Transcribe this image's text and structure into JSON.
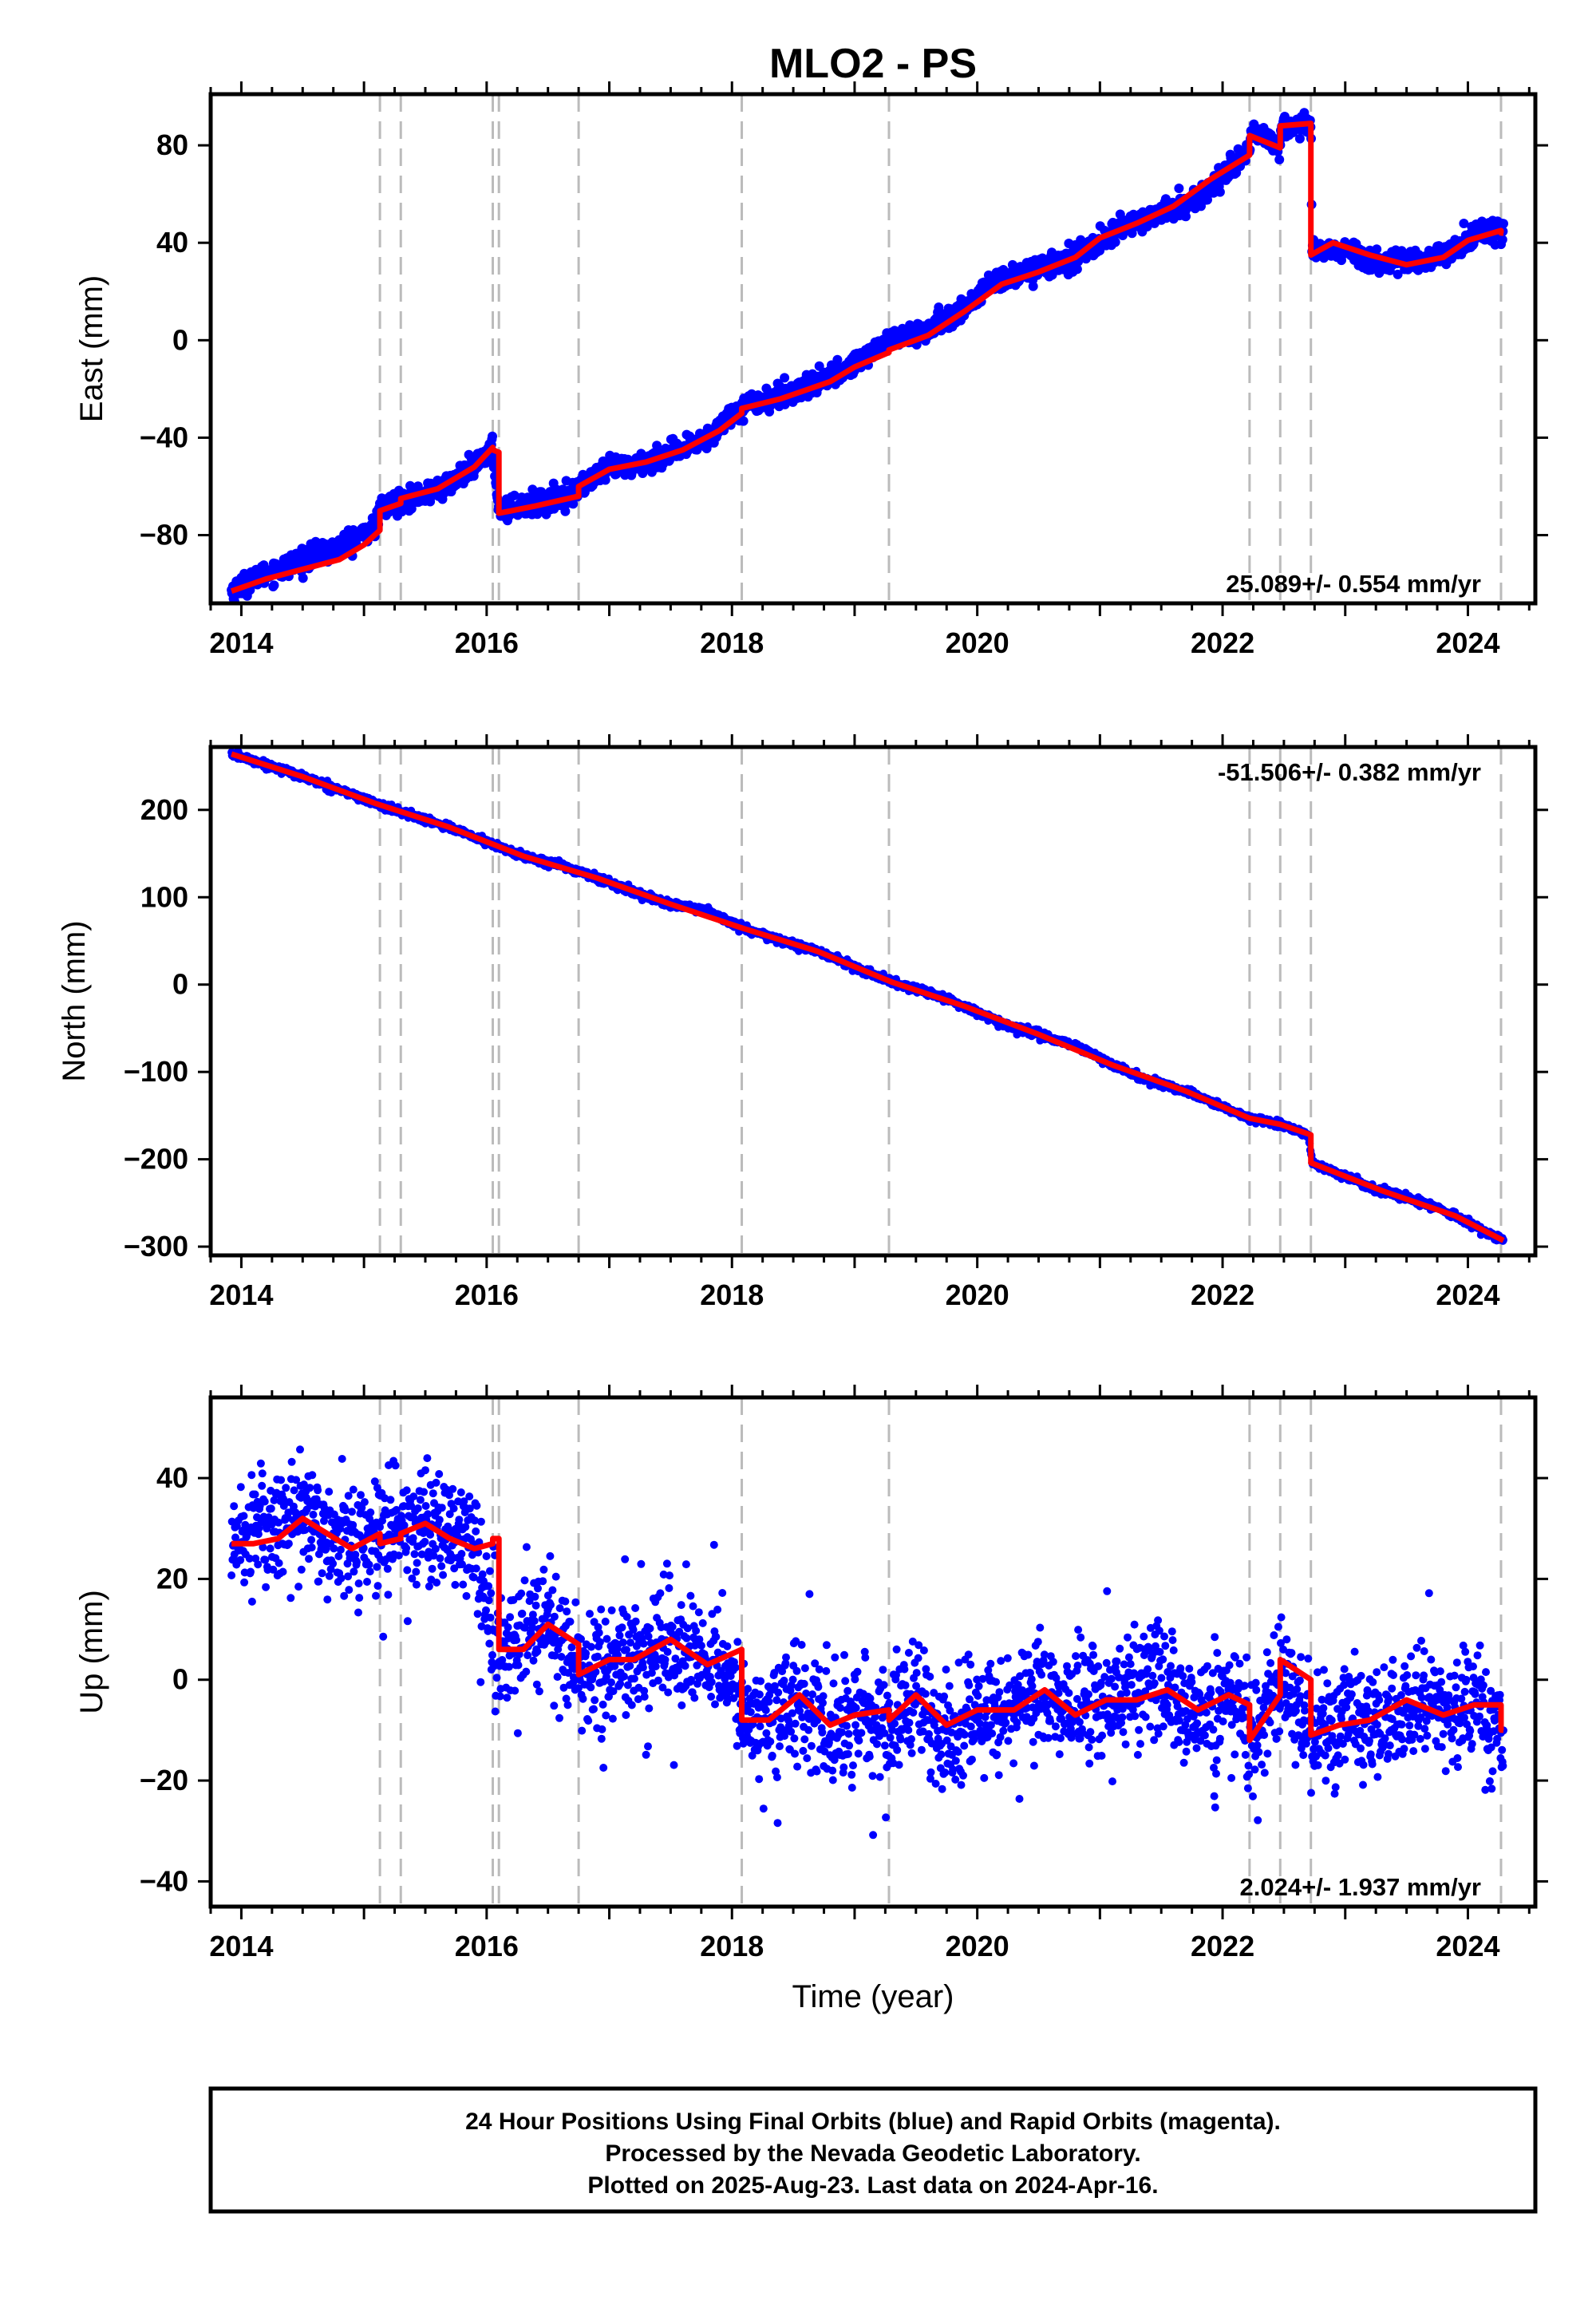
{
  "title": "MLO2 - PS",
  "xlabel": "Time (year)",
  "footer": {
    "line1": "24 Hour Positions Using Final Orbits (blue) and Rapid Orbits (magenta).",
    "line2": "Processed by the Nevada Geodetic Laboratory.",
    "line3": "Plotted on 2025-Aug-23. Last data on 2024-Apr-16."
  },
  "colors": {
    "final_orbits": "#0000ff",
    "model": "#ff0000",
    "event_lines": "#bbbbbb",
    "frame": "#000000"
  },
  "chart_data": [
    {
      "type": "scatter",
      "panel": "east",
      "ylabel": "East (mm)",
      "rate": "25.089+/- 0.554 mm/yr",
      "rate_position": "bottom-right",
      "xlim": [
        2013.75,
        2024.55
      ],
      "ylim": [
        -108,
        101
      ],
      "x_ticks": [
        2014,
        2016,
        2018,
        2020,
        2022,
        2024
      ],
      "y_ticks": [
        -80,
        -40,
        0,
        40,
        80
      ],
      "event_lines": [
        2015.13,
        2015.3,
        2016.05,
        2016.1,
        2016.75,
        2018.08,
        2019.28,
        2022.22,
        2022.47,
        2022.72,
        2024.27
      ],
      "series": [
        {
          "role": "daily positions (blue)",
          "x": [
            2013.92,
            2014.1,
            2014.3,
            2014.5,
            2014.7,
            2014.9,
            2015.1,
            2015.14,
            2015.3,
            2015.5,
            2015.7,
            2015.9,
            2016.05,
            2016.1,
            2016.3,
            2016.5,
            2016.7,
            2016.76,
            2017.0,
            2017.3,
            2017.6,
            2017.8,
            2018.08,
            2018.3,
            2018.6,
            2018.9,
            2019.1,
            2019.28,
            2019.6,
            2019.9,
            2020.1,
            2020.3,
            2020.6,
            2020.9,
            2021.2,
            2021.5,
            2021.8,
            2022.0,
            2022.22,
            2022.23,
            2022.47,
            2022.48,
            2022.72,
            2022.73,
            2023.0,
            2023.3,
            2023.6,
            2023.9,
            2024.1,
            2024.29
          ],
          "y": [
            -103,
            -98,
            -94,
            -90,
            -87,
            -82,
            -76,
            -69,
            -66,
            -63,
            -59,
            -52,
            -44,
            -70,
            -68,
            -66,
            -63,
            -60,
            -53,
            -50,
            -45,
            -40,
            -27,
            -24,
            -19,
            -13,
            -6,
            0,
            4,
            13,
            23,
            27,
            31,
            37,
            47,
            52,
            58,
            67,
            79,
            86,
            80,
            88,
            88,
            37,
            37,
            32,
            32,
            38,
            44,
            45
          ]
        },
        {
          "role": "model fit (red)",
          "x": [
            2013.92,
            2014.2,
            2014.5,
            2014.8,
            2015.0,
            2015.13,
            2015.13,
            2015.3,
            2015.3,
            2015.6,
            2015.9,
            2016.05,
            2016.05,
            2016.1,
            2016.1,
            2016.4,
            2016.75,
            2016.75,
            2017.0,
            2017.3,
            2017.6,
            2017.9,
            2018.08,
            2018.08,
            2018.4,
            2018.8,
            2019.0,
            2019.28,
            2019.28,
            2019.6,
            2019.9,
            2020.2,
            2020.5,
            2020.8,
            2021.0,
            2021.3,
            2021.6,
            2021.9,
            2022.22,
            2022.22,
            2022.47,
            2022.47,
            2022.72,
            2022.72,
            2022.9,
            2023.2,
            2023.5,
            2023.8,
            2024.0,
            2024.27,
            2024.27,
            2024.29
          ],
          "y": [
            -103,
            -98,
            -94,
            -90,
            -84,
            -78,
            -70,
            -67,
            -65,
            -61,
            -52,
            -44,
            -45,
            -46,
            -71,
            -68,
            -64,
            -60,
            -53,
            -50,
            -45,
            -37,
            -30,
            -28,
            -24,
            -17,
            -11,
            -5,
            -4,
            2,
            12,
            23,
            28,
            34,
            42,
            48,
            55,
            66,
            76,
            84,
            79,
            88,
            89,
            35,
            40,
            35,
            31,
            34,
            41,
            45,
            44,
            44
          ]
        }
      ]
    },
    {
      "type": "scatter",
      "panel": "north",
      "ylabel": "North (mm)",
      "rate": "-51.506+/- 0.382 mm/yr",
      "rate_position": "top-right",
      "xlim": [
        2013.75,
        2024.55
      ],
      "ylim": [
        -310,
        272
      ],
      "x_ticks": [
        2014,
        2016,
        2018,
        2020,
        2022,
        2024
      ],
      "y_ticks": [
        -300,
        -200,
        -100,
        0,
        100,
        200
      ],
      "event_lines": [
        2015.13,
        2015.3,
        2016.05,
        2016.1,
        2016.75,
        2018.08,
        2019.28,
        2022.22,
        2022.47,
        2022.72,
        2024.27
      ],
      "series": [
        {
          "role": "daily positions (blue)",
          "x": [
            2013.92,
            2014.2,
            2014.5,
            2014.8,
            2015.1,
            2015.4,
            2015.7,
            2016.0,
            2016.3,
            2016.6,
            2016.9,
            2017.2,
            2017.5,
            2017.8,
            2018.1,
            2018.4,
            2018.7,
            2019.0,
            2019.3,
            2019.6,
            2019.9,
            2020.2,
            2020.5,
            2020.8,
            2021.1,
            2021.4,
            2021.7,
            2022.0,
            2022.22,
            2022.47,
            2022.7,
            2022.73,
            2023.0,
            2023.3,
            2023.6,
            2023.9,
            2024.1,
            2024.29
          ],
          "y": [
            264,
            252,
            238,
            223,
            207,
            193,
            180,
            163,
            147,
            137,
            122,
            106,
            92,
            84,
            64,
            50,
            38,
            20,
            3,
            -9,
            -25,
            -45,
            -57,
            -70,
            -92,
            -110,
            -122,
            -140,
            -153,
            -160,
            -172,
            -204,
            -220,
            -236,
            -248,
            -265,
            -280,
            -293
          ]
        },
        {
          "role": "model fit (red)",
          "x": [
            2013.92,
            2014.5,
            2015.1,
            2015.7,
            2016.3,
            2016.9,
            2017.5,
            2018.1,
            2018.7,
            2019.3,
            2019.9,
            2020.5,
            2021.1,
            2021.7,
            2022.22,
            2022.47,
            2022.72,
            2022.72,
            2023.3,
            2023.9,
            2024.29
          ],
          "y": [
            264,
            238,
            207,
            180,
            147,
            122,
            92,
            64,
            38,
            3,
            -25,
            -57,
            -92,
            -122,
            -153,
            -160,
            -172,
            -204,
            -236,
            -265,
            -293
          ]
        }
      ]
    },
    {
      "type": "scatter",
      "panel": "up",
      "ylabel": "Up (mm)",
      "rate": "2.024+/- 1.937 mm/yr",
      "rate_position": "bottom-right",
      "xlim": [
        2013.75,
        2024.55
      ],
      "ylim": [
        -45,
        56
      ],
      "x_ticks": [
        2014,
        2016,
        2018,
        2020,
        2022,
        2024
      ],
      "y_ticks": [
        -40,
        -20,
        0,
        20,
        40
      ],
      "event_lines": [
        2015.13,
        2015.3,
        2016.05,
        2016.1,
        2016.75,
        2018.08,
        2019.28,
        2022.22,
        2022.47,
        2022.72,
        2024.27
      ],
      "series": [
        {
          "role": "daily positions (blue)",
          "x": [
            2013.92,
            2014.1,
            2014.3,
            2014.5,
            2014.7,
            2014.9,
            2015.1,
            2015.3,
            2015.5,
            2015.7,
            2015.9,
            2016.1,
            2016.3,
            2016.5,
            2016.7,
            2016.9,
            2017.1,
            2017.3,
            2017.5,
            2017.7,
            2017.9,
            2018.1,
            2018.3,
            2018.5,
            2018.7,
            2018.9,
            2019.1,
            2019.3,
            2019.5,
            2019.7,
            2019.9,
            2020.1,
            2020.3,
            2020.5,
            2020.7,
            2020.9,
            2021.1,
            2021.3,
            2021.5,
            2021.7,
            2021.9,
            2022.1,
            2022.3,
            2022.5,
            2022.7,
            2022.9,
            2023.1,
            2023.3,
            2023.5,
            2023.7,
            2023.9,
            2024.1,
            2024.29
          ],
          "y": [
            27,
            31,
            30,
            34,
            28,
            26,
            30,
            29,
            32,
            28,
            27,
            6,
            8,
            11,
            3,
            1,
            3,
            5,
            8,
            5,
            4,
            -8,
            -8,
            -3,
            -8,
            -9,
            -6,
            -8,
            -4,
            -10,
            -9,
            -6,
            -6,
            -2,
            -6,
            -4,
            -5,
            -2,
            -1,
            -7,
            -5,
            -3,
            -11,
            2,
            -11,
            -9,
            -8,
            -10,
            -4,
            -6,
            -7,
            -6,
            -10
          ]
        },
        {
          "role": "model fit (red)",
          "x": [
            2013.92,
            2014.1,
            2014.3,
            2014.5,
            2014.7,
            2014.9,
            2015.13,
            2015.13,
            2015.3,
            2015.3,
            2015.5,
            2015.7,
            2015.9,
            2016.05,
            2016.05,
            2016.1,
            2016.1,
            2016.3,
            2016.5,
            2016.75,
            2016.75,
            2017.0,
            2017.2,
            2017.5,
            2017.8,
            2018.08,
            2018.08,
            2018.3,
            2018.55,
            2018.8,
            2019.0,
            2019.28,
            2019.28,
            2019.5,
            2019.75,
            2020.0,
            2020.3,
            2020.55,
            2020.8,
            2021.05,
            2021.3,
            2021.55,
            2021.8,
            2022.05,
            2022.22,
            2022.22,
            2022.47,
            2022.47,
            2022.72,
            2022.72,
            2022.95,
            2023.2,
            2023.5,
            2023.8,
            2024.05,
            2024.27,
            2024.27,
            2024.29
          ],
          "y": [
            27,
            27,
            28,
            32,
            29,
            26,
            29,
            27,
            28,
            29,
            31,
            28,
            26,
            27,
            28,
            28,
            6,
            6,
            11,
            7,
            1,
            4,
            4,
            8,
            3,
            6,
            -8,
            -8,
            -3,
            -9,
            -7,
            -6,
            -8,
            -3,
            -9,
            -6,
            -6,
            -2,
            -7,
            -4,
            -4,
            -2,
            -6,
            -3,
            -5,
            -12,
            -3,
            4,
            0,
            -11,
            -9,
            -8,
            -4,
            -7,
            -5,
            -5,
            -10,
            -10
          ]
        }
      ]
    }
  ]
}
